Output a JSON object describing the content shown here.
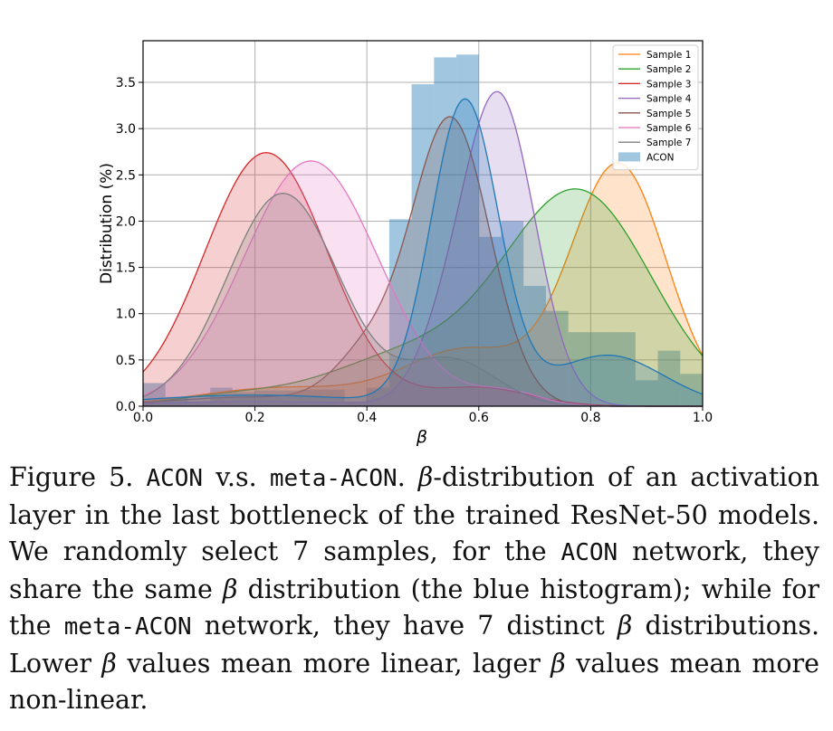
{
  "caption": {
    "label": "Figure 5.",
    "t1": "ACON",
    "t2": " v.s. ",
    "t3": "meta-ACON",
    "t4": ". ",
    "beta": "β",
    "t5": "-distribution of an activation layer in the last bottleneck of the trained ResNet-50 models. We randomly select 7 samples, for the ",
    "t6": "ACON",
    "t7": " network, they share the same ",
    "t8": " distribution (the blue histogram); while for the ",
    "t9": "meta-ACON",
    "t10": " network, they have 7 distinct ",
    "t11": " distributions. Lower ",
    "t12": " values mean more linear, lager ",
    "t13": " values mean more non-linear."
  },
  "chart_data": {
    "type": "area",
    "xlabel": "β",
    "ylabel": "Distribution (%)",
    "xlim": [
      0.0,
      1.0
    ],
    "ylim": [
      0.0,
      3.95
    ],
    "xticks": [
      "0.0",
      "0.2",
      "0.4",
      "0.6",
      "0.8",
      "1.0"
    ],
    "yticks": [
      "0.0",
      "0.5",
      "1.0",
      "1.5",
      "2.0",
      "2.5",
      "3.0",
      "3.5"
    ],
    "grid": true,
    "legend_position": "top-right",
    "histogram": {
      "name": "ACON",
      "color": "#1f77b4",
      "bin_width": 0.04,
      "bins": [
        {
          "x": 0.0,
          "y": 0.25
        },
        {
          "x": 0.04,
          "y": 0.1
        },
        {
          "x": 0.08,
          "y": 0.05
        },
        {
          "x": 0.12,
          "y": 0.2
        },
        {
          "x": 0.16,
          "y": 0.15
        },
        {
          "x": 0.2,
          "y": 0.17
        },
        {
          "x": 0.24,
          "y": 0.17
        },
        {
          "x": 0.28,
          "y": 0.18
        },
        {
          "x": 0.32,
          "y": 0.18
        },
        {
          "x": 0.36,
          "y": 0.05
        },
        {
          "x": 0.4,
          "y": 0.2
        },
        {
          "x": 0.44,
          "y": 2.02
        },
        {
          "x": 0.48,
          "y": 3.48
        },
        {
          "x": 0.52,
          "y": 3.77
        },
        {
          "x": 0.56,
          "y": 3.8
        },
        {
          "x": 0.6,
          "y": 1.83
        },
        {
          "x": 0.64,
          "y": 2.0
        },
        {
          "x": 0.68,
          "y": 1.3
        },
        {
          "x": 0.72,
          "y": 1.03
        },
        {
          "x": 0.76,
          "y": 0.8
        },
        {
          "x": 0.8,
          "y": 0.8
        },
        {
          "x": 0.84,
          "y": 0.8
        },
        {
          "x": 0.88,
          "y": 0.28
        },
        {
          "x": 0.92,
          "y": 0.6
        },
        {
          "x": 0.96,
          "y": 0.35
        }
      ]
    },
    "series": [
      {
        "name": "Sample 1",
        "color": "#ff7f0e",
        "type": "gauss",
        "components": [
          {
            "mu": 0.85,
            "sigma": 0.085,
            "amp": 2.6
          },
          {
            "mu": 0.58,
            "sigma": 0.11,
            "amp": 0.6
          },
          {
            "mu": 0.25,
            "sigma": 0.15,
            "amp": 0.2
          }
        ]
      },
      {
        "name": "Sample 2",
        "color": "#2ca02c",
        "type": "gauss",
        "components": [
          {
            "mu": 0.78,
            "sigma": 0.13,
            "amp": 2.27
          },
          {
            "mu": 0.48,
            "sigma": 0.15,
            "amp": 0.55
          },
          {
            "mu": 0.15,
            "sigma": 0.1,
            "amp": 0.1
          }
        ]
      },
      {
        "name": "Sample 3",
        "color": "#d62728",
        "type": "gauss",
        "components": [
          {
            "mu": 0.22,
            "sigma": 0.11,
            "amp": 2.74
          },
          {
            "mu": 0.6,
            "sigma": 0.09,
            "amp": 0.2
          }
        ]
      },
      {
        "name": "Sample 4",
        "color": "#9467bd",
        "type": "gauss",
        "components": [
          {
            "mu": 0.635,
            "sigma": 0.065,
            "amp": 3.35
          },
          {
            "mu": 0.53,
            "sigma": 0.05,
            "amp": 0.4
          },
          {
            "mu": 0.2,
            "sigma": 0.2,
            "amp": 0.05
          }
        ]
      },
      {
        "name": "Sample 5",
        "color": "#8c564b",
        "type": "gauss",
        "components": [
          {
            "mu": 0.55,
            "sigma": 0.07,
            "amp": 3.1
          },
          {
            "mu": 0.4,
            "sigma": 0.06,
            "amp": 0.5
          },
          {
            "mu": 0.2,
            "sigma": 0.15,
            "amp": 0.1
          }
        ]
      },
      {
        "name": "Sample 6",
        "color": "#e377c2",
        "type": "gauss",
        "components": [
          {
            "mu": 0.3,
            "sigma": 0.12,
            "amp": 2.65
          },
          {
            "mu": 0.65,
            "sigma": 0.06,
            "amp": 0.15
          }
        ]
      },
      {
        "name": "Sample 7",
        "color": "#7f7f7f",
        "type": "gauss",
        "components": [
          {
            "mu": 0.25,
            "sigma": 0.1,
            "amp": 2.3
          },
          {
            "mu": 0.55,
            "sigma": 0.08,
            "amp": 0.5
          }
        ]
      },
      {
        "name": "",
        "color": "#1f77b4",
        "type": "gauss",
        "components": [
          {
            "mu": 0.575,
            "sigma": 0.06,
            "amp": 3.28
          },
          {
            "mu": 0.83,
            "sigma": 0.1,
            "amp": 0.55
          },
          {
            "mu": 0.2,
            "sigma": 0.2,
            "amp": 0.12
          }
        ]
      }
    ]
  }
}
